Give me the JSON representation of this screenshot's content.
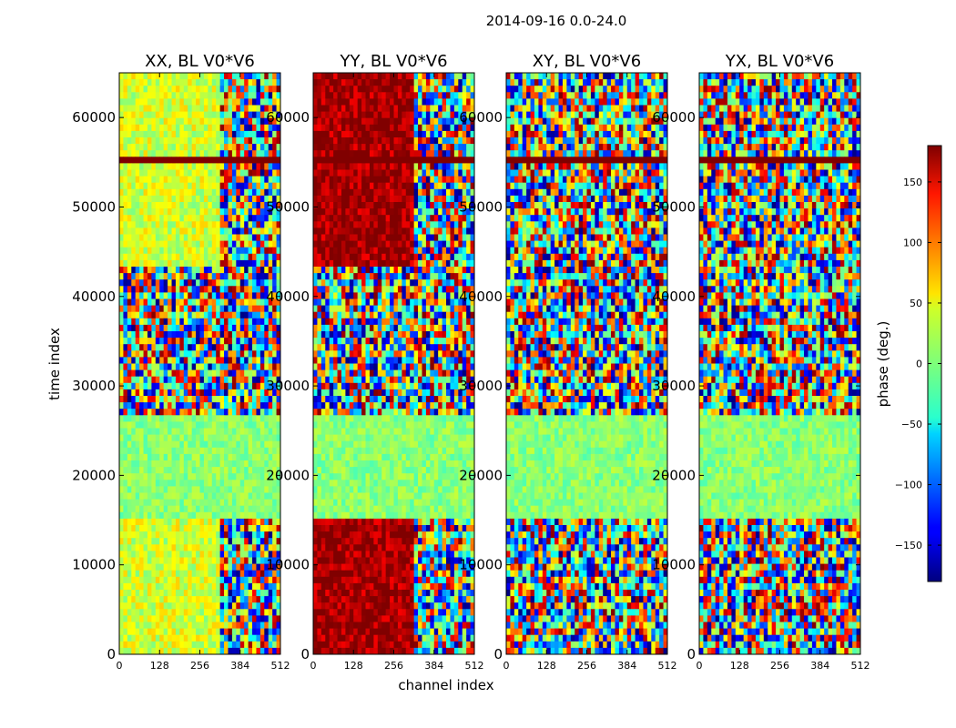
{
  "chart_data": {
    "type": "heatmap",
    "suptitle": "2014-09-16 0.0-24.0",
    "xlabel": "channel index",
    "ylabel": "time index",
    "xlim": [
      0,
      512
    ],
    "ylim": [
      0,
      65000
    ],
    "xticks": [
      0,
      128,
      256,
      384,
      512
    ],
    "yticks": [
      0,
      10000,
      20000,
      30000,
      40000,
      50000,
      60000
    ],
    "ytick_labels": [
      "0",
      "10000",
      "20000",
      "30000",
      "40000",
      "50000",
      "60000"
    ],
    "panels": [
      {
        "title": "XX, BL V0*V6",
        "dominant_phase_deg": 30
      },
      {
        "title": "YY, BL V0*V6",
        "dominant_phase_deg": 170
      },
      {
        "title": "XY, BL V0*V6",
        "dominant_phase_deg": null
      },
      {
        "title": "YX, BL V0*V6",
        "dominant_phase_deg": null
      }
    ],
    "colorbar": {
      "label": "phase (deg.)",
      "range": [
        -180,
        180
      ],
      "ticks": [
        -150,
        -100,
        -50,
        0,
        50,
        100,
        150
      ],
      "tick_labels": [
        "−150",
        "−100",
        "−50",
        "0",
        "50",
        "100",
        "150"
      ],
      "colormap": "jet"
    },
    "flagged_time_ranges": [
      [
        54700,
        55300
      ]
    ],
    "quiet_time_ranges": [
      [
        15000,
        27000
      ]
    ]
  }
}
